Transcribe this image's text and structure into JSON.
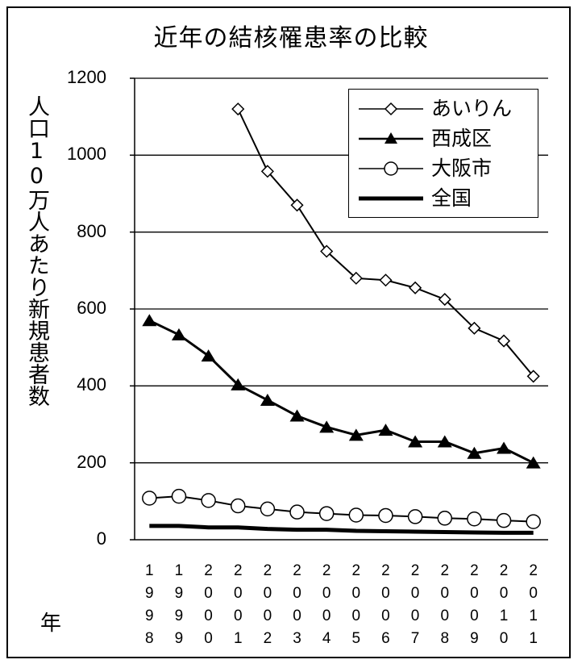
{
  "chart_data": {
    "type": "line",
    "title": "近年の結核罹患率の比較",
    "ylabel": "人口10万人あたり新規患者数",
    "xlabel": "年",
    "ylim": [
      0,
      1200
    ],
    "yticks": [
      "0",
      "200",
      "400",
      "600",
      "800",
      "1000",
      "1200"
    ],
    "x": [
      "1998",
      "1999",
      "2000",
      "2001",
      "2002",
      "2003",
      "2004",
      "2005",
      "2006",
      "2007",
      "2008",
      "2009",
      "2010",
      "2011"
    ],
    "grid": true,
    "legend_position": "top-right",
    "series": [
      {
        "name": "あいりん",
        "marker": "diamond-open",
        "values": [
          null,
          null,
          null,
          1120,
          958,
          870,
          750,
          680,
          675,
          655,
          625,
          550,
          517,
          425
        ]
      },
      {
        "name": "西成区",
        "marker": "triangle-filled",
        "values": [
          570,
          533,
          478,
          403,
          363,
          322,
          293,
          272,
          285,
          255,
          255,
          225,
          238,
          200
        ]
      },
      {
        "name": "大阪市",
        "marker": "circle-open",
        "values": [
          108,
          113,
          102,
          88,
          80,
          72,
          68,
          64,
          63,
          60,
          56,
          54,
          50,
          47
        ]
      },
      {
        "name": "全国",
        "marker": "none",
        "values": [
          36,
          36,
          32,
          32,
          28,
          26,
          26,
          23,
          22,
          21,
          20,
          19,
          18,
          18
        ]
      }
    ]
  }
}
